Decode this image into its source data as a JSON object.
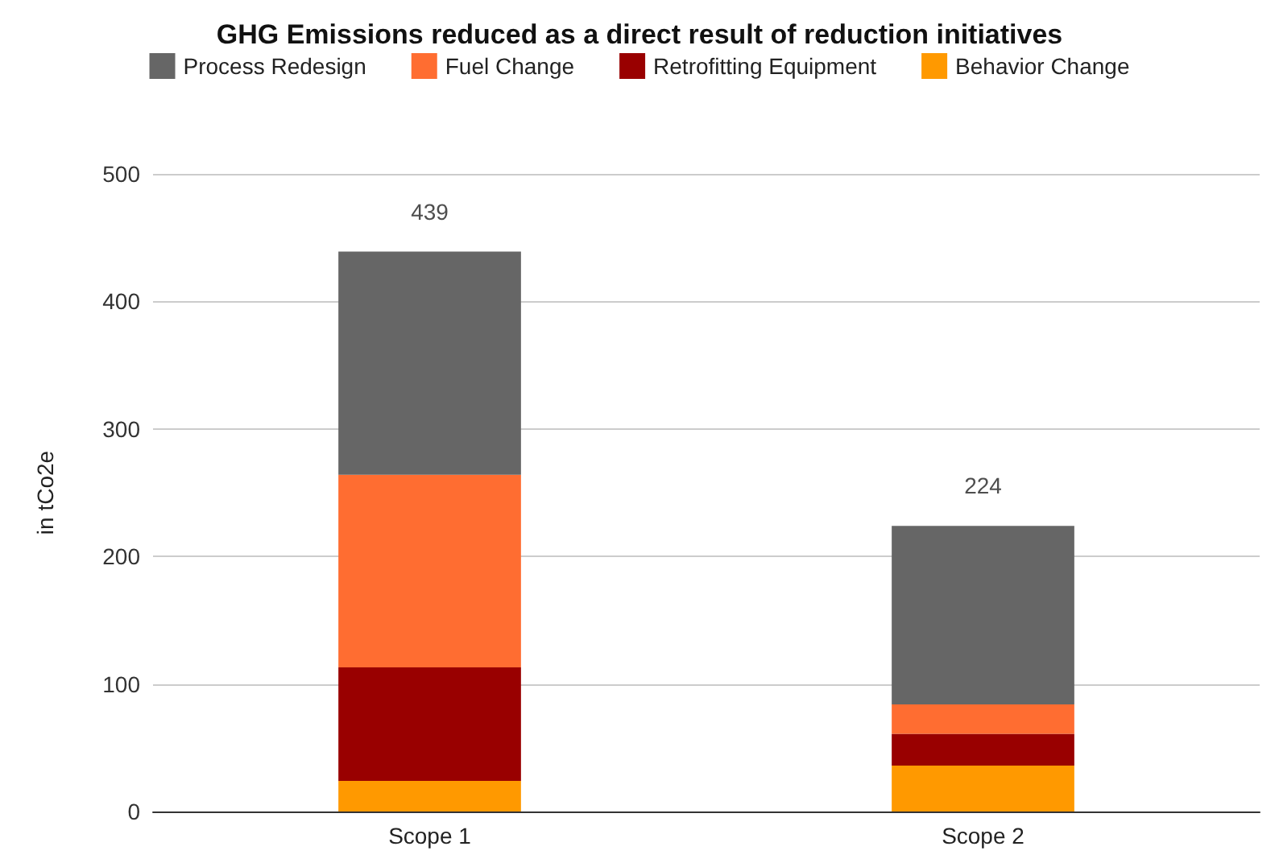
{
  "chart_data": {
    "type": "bar",
    "title": "GHG Emissions reduced as a direct result of reduction initiatives",
    "ylabel": "in tCo2e",
    "categories": [
      "Scope 1",
      "Scope 2"
    ],
    "stacked": true,
    "series": [
      {
        "name": "Behavior Change",
        "color": "#ff9900",
        "values": [
          24,
          36
        ]
      },
      {
        "name": "Retrofitting Equipment",
        "color": "#990000",
        "values": [
          89,
          25
        ]
      },
      {
        "name": "Fuel Change",
        "color": "#ff6d31",
        "values": [
          151,
          23
        ]
      },
      {
        "name": "Process Redesign",
        "color": "#666666",
        "values": [
          175,
          140
        ]
      }
    ],
    "totals": [
      "439",
      "224"
    ],
    "ylim": [
      0,
      500
    ],
    "yticks": [
      0,
      100,
      200,
      300,
      400,
      500
    ],
    "grid": "y",
    "legend": "top"
  }
}
